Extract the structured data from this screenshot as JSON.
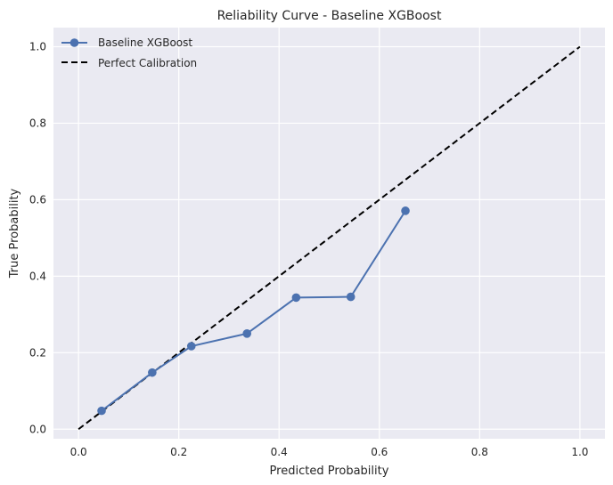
{
  "chart_data": {
    "type": "line",
    "title": "Reliability Curve - Baseline XGBoost",
    "xlabel": "Predicted Probability",
    "ylabel": "True Probability",
    "xlim": [
      -0.05,
      1.05
    ],
    "ylim": [
      -0.025,
      1.05
    ],
    "xticks": [
      0.0,
      0.2,
      0.4,
      0.6,
      0.8,
      1.0
    ],
    "xtick_labels": [
      "0.0",
      "0.2",
      "0.4",
      "0.6",
      "0.8",
      "1.0"
    ],
    "yticks": [
      0.0,
      0.2,
      0.4,
      0.6,
      0.8,
      1.0
    ],
    "ytick_labels": [
      "0.0",
      "0.2",
      "0.4",
      "0.6",
      "0.8",
      "1.0"
    ],
    "grid": true,
    "legend_position": "top-left",
    "series": [
      {
        "name": "Baseline XGBoost",
        "style": "line-with-markers",
        "color": "#4c72b0",
        "x": [
          0.046,
          0.147,
          0.225,
          0.336,
          0.434,
          0.543,
          0.652
        ],
        "y": [
          0.048,
          0.148,
          0.217,
          0.25,
          0.344,
          0.346,
          0.571
        ]
      },
      {
        "name": "Perfect Calibration",
        "style": "dashed",
        "color": "#000000",
        "x": [
          0.0,
          1.0
        ],
        "y": [
          0.0,
          1.0
        ]
      }
    ],
    "colors": {
      "plot_background": "#eaeaf2",
      "grid": "#ffffff"
    }
  }
}
